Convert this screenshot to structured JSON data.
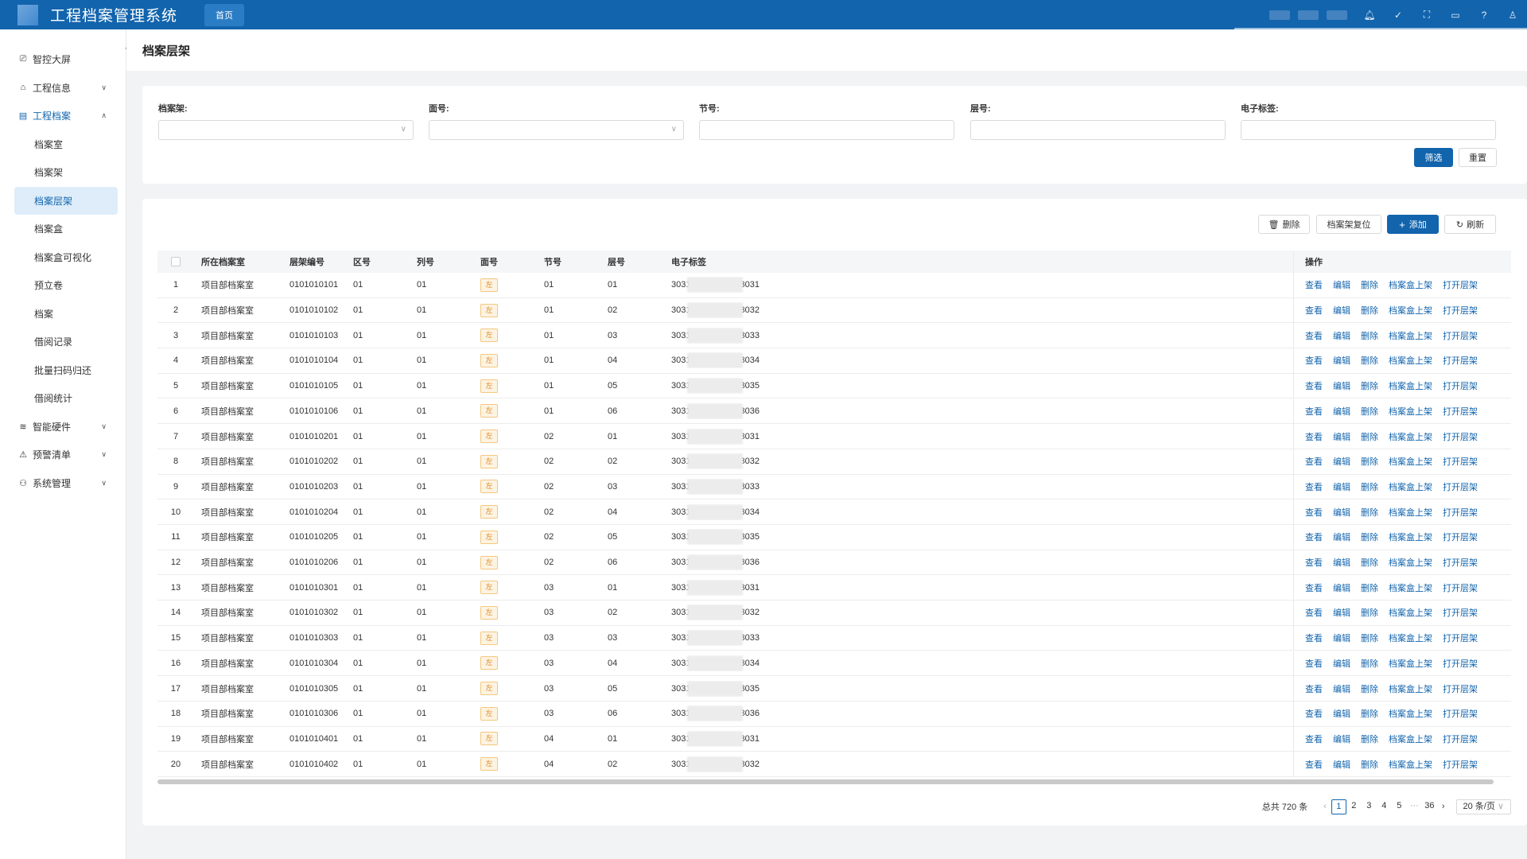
{
  "app": {
    "title": "工程档案管理系统",
    "home_tab": "首页"
  },
  "sidebar": {
    "items": [
      {
        "label": "智控大屏",
        "icon": "monitor-icon",
        "glyph": "⎚",
        "expandable": false
      },
      {
        "label": "工程信息",
        "icon": "building-icon",
        "glyph": "⌂",
        "expandable": true,
        "open": false
      },
      {
        "label": "工程档案",
        "icon": "archive-icon",
        "glyph": "▤",
        "expandable": true,
        "open": true
      }
    ],
    "sub_items": [
      "档案室",
      "档案架",
      "档案层架",
      "档案盒",
      "档案盒可视化",
      "预立卷",
      "档案",
      "借阅记录",
      "批量扫码归还",
      "借阅统计"
    ],
    "active_sub": "档案层架",
    "bottom_items": [
      {
        "label": "智能硬件",
        "icon": "wifi-icon",
        "glyph": "≋"
      },
      {
        "label": "预警清单",
        "icon": "alarm-icon",
        "glyph": "⚠"
      },
      {
        "label": "系统管理",
        "icon": "org-icon",
        "glyph": "⚇"
      }
    ]
  },
  "page": {
    "title": "档案层架"
  },
  "filters": {
    "shelf_label": "档案架:",
    "face_label": "面号:",
    "section_label": "节号:",
    "layer_label": "层号:",
    "tag_label": "电子标签:",
    "filter_button": "筛选",
    "reset_button": "重置"
  },
  "toolbar": {
    "delete": "删除",
    "reset_shelf": "档案架复位",
    "add": "添加",
    "refresh": "刷新"
  },
  "table": {
    "headers": [
      "所在档案室",
      "层架编号",
      "区号",
      "列号",
      "面号",
      "节号",
      "层号",
      "电子标签",
      "操作"
    ],
    "ops": [
      "查看",
      "编辑",
      "删除",
      "档案盒上架",
      "打开层架"
    ],
    "rows": [
      {
        "idx": "1",
        "room": "项目部档案室",
        "code": "0101010101",
        "qu": "01",
        "lie": "01",
        "mian": "左",
        "jie": "01",
        "ceng": "01",
        "tag_pre": "3031",
        "tag_suf": "3031"
      },
      {
        "idx": "2",
        "room": "项目部档案室",
        "code": "0101010102",
        "qu": "01",
        "lie": "01",
        "mian": "左",
        "jie": "01",
        "ceng": "02",
        "tag_pre": "3031",
        "tag_suf": "3032"
      },
      {
        "idx": "3",
        "room": "项目部档案室",
        "code": "0101010103",
        "qu": "01",
        "lie": "01",
        "mian": "左",
        "jie": "01",
        "ceng": "03",
        "tag_pre": "3031",
        "tag_suf": "3033"
      },
      {
        "idx": "4",
        "room": "项目部档案室",
        "code": "0101010104",
        "qu": "01",
        "lie": "01",
        "mian": "左",
        "jie": "01",
        "ceng": "04",
        "tag_pre": "3031",
        "tag_suf": "3034"
      },
      {
        "idx": "5",
        "room": "项目部档案室",
        "code": "0101010105",
        "qu": "01",
        "lie": "01",
        "mian": "左",
        "jie": "01",
        "ceng": "05",
        "tag_pre": "3031",
        "tag_suf": "3035"
      },
      {
        "idx": "6",
        "room": "项目部档案室",
        "code": "0101010106",
        "qu": "01",
        "lie": "01",
        "mian": "左",
        "jie": "01",
        "ceng": "06",
        "tag_pre": "3031",
        "tag_suf": "3036"
      },
      {
        "idx": "7",
        "room": "项目部档案室",
        "code": "0101010201",
        "qu": "01",
        "lie": "01",
        "mian": "左",
        "jie": "02",
        "ceng": "01",
        "tag_pre": "3031",
        "tag_suf": "3031"
      },
      {
        "idx": "8",
        "room": "项目部档案室",
        "code": "0101010202",
        "qu": "01",
        "lie": "01",
        "mian": "左",
        "jie": "02",
        "ceng": "02",
        "tag_pre": "3031",
        "tag_suf": "3032"
      },
      {
        "idx": "9",
        "room": "项目部档案室",
        "code": "0101010203",
        "qu": "01",
        "lie": "01",
        "mian": "左",
        "jie": "02",
        "ceng": "03",
        "tag_pre": "3031",
        "tag_suf": "3033"
      },
      {
        "idx": "10",
        "room": "项目部档案室",
        "code": "0101010204",
        "qu": "01",
        "lie": "01",
        "mian": "左",
        "jie": "02",
        "ceng": "04",
        "tag_pre": "3031",
        "tag_suf": "3034"
      },
      {
        "idx": "11",
        "room": "项目部档案室",
        "code": "0101010205",
        "qu": "01",
        "lie": "01",
        "mian": "左",
        "jie": "02",
        "ceng": "05",
        "tag_pre": "3031",
        "tag_suf": "3035"
      },
      {
        "idx": "12",
        "room": "项目部档案室",
        "code": "0101010206",
        "qu": "01",
        "lie": "01",
        "mian": "左",
        "jie": "02",
        "ceng": "06",
        "tag_pre": "3031",
        "tag_suf": "3036"
      },
      {
        "idx": "13",
        "room": "项目部档案室",
        "code": "0101010301",
        "qu": "01",
        "lie": "01",
        "mian": "左",
        "jie": "03",
        "ceng": "01",
        "tag_pre": "3031",
        "tag_suf": "3031"
      },
      {
        "idx": "14",
        "room": "项目部档案室",
        "code": "0101010302",
        "qu": "01",
        "lie": "01",
        "mian": "左",
        "jie": "03",
        "ceng": "02",
        "tag_pre": "3031",
        "tag_suf": "3032"
      },
      {
        "idx": "15",
        "room": "项目部档案室",
        "code": "0101010303",
        "qu": "01",
        "lie": "01",
        "mian": "左",
        "jie": "03",
        "ceng": "03",
        "tag_pre": "3031",
        "tag_suf": "3033"
      },
      {
        "idx": "16",
        "room": "项目部档案室",
        "code": "0101010304",
        "qu": "01",
        "lie": "01",
        "mian": "左",
        "jie": "03",
        "ceng": "04",
        "tag_pre": "3031",
        "tag_suf": "3034"
      },
      {
        "idx": "17",
        "room": "项目部档案室",
        "code": "0101010305",
        "qu": "01",
        "lie": "01",
        "mian": "左",
        "jie": "03",
        "ceng": "05",
        "tag_pre": "3031",
        "tag_suf": "3035"
      },
      {
        "idx": "18",
        "room": "项目部档案室",
        "code": "0101010306",
        "qu": "01",
        "lie": "01",
        "mian": "左",
        "jie": "03",
        "ceng": "06",
        "tag_pre": "3031",
        "tag_suf": "3036"
      },
      {
        "idx": "19",
        "room": "项目部档案室",
        "code": "0101010401",
        "qu": "01",
        "lie": "01",
        "mian": "左",
        "jie": "04",
        "ceng": "01",
        "tag_pre": "3031",
        "tag_suf": "3031"
      },
      {
        "idx": "20",
        "room": "项目部档案室",
        "code": "0101010402",
        "qu": "01",
        "lie": "01",
        "mian": "左",
        "jie": "04",
        "ceng": "02",
        "tag_pre": "3031",
        "tag_suf": "3032"
      }
    ]
  },
  "pagination": {
    "total": "总共 720 条",
    "pages": [
      "1",
      "2",
      "3",
      "4",
      "5",
      "···",
      "36"
    ],
    "current": "1",
    "page_size": "20 条/页"
  },
  "colors": {
    "primary": "#1264ad",
    "badge_text": "#e08a1e",
    "badge_bg": "#fdf3e2"
  }
}
